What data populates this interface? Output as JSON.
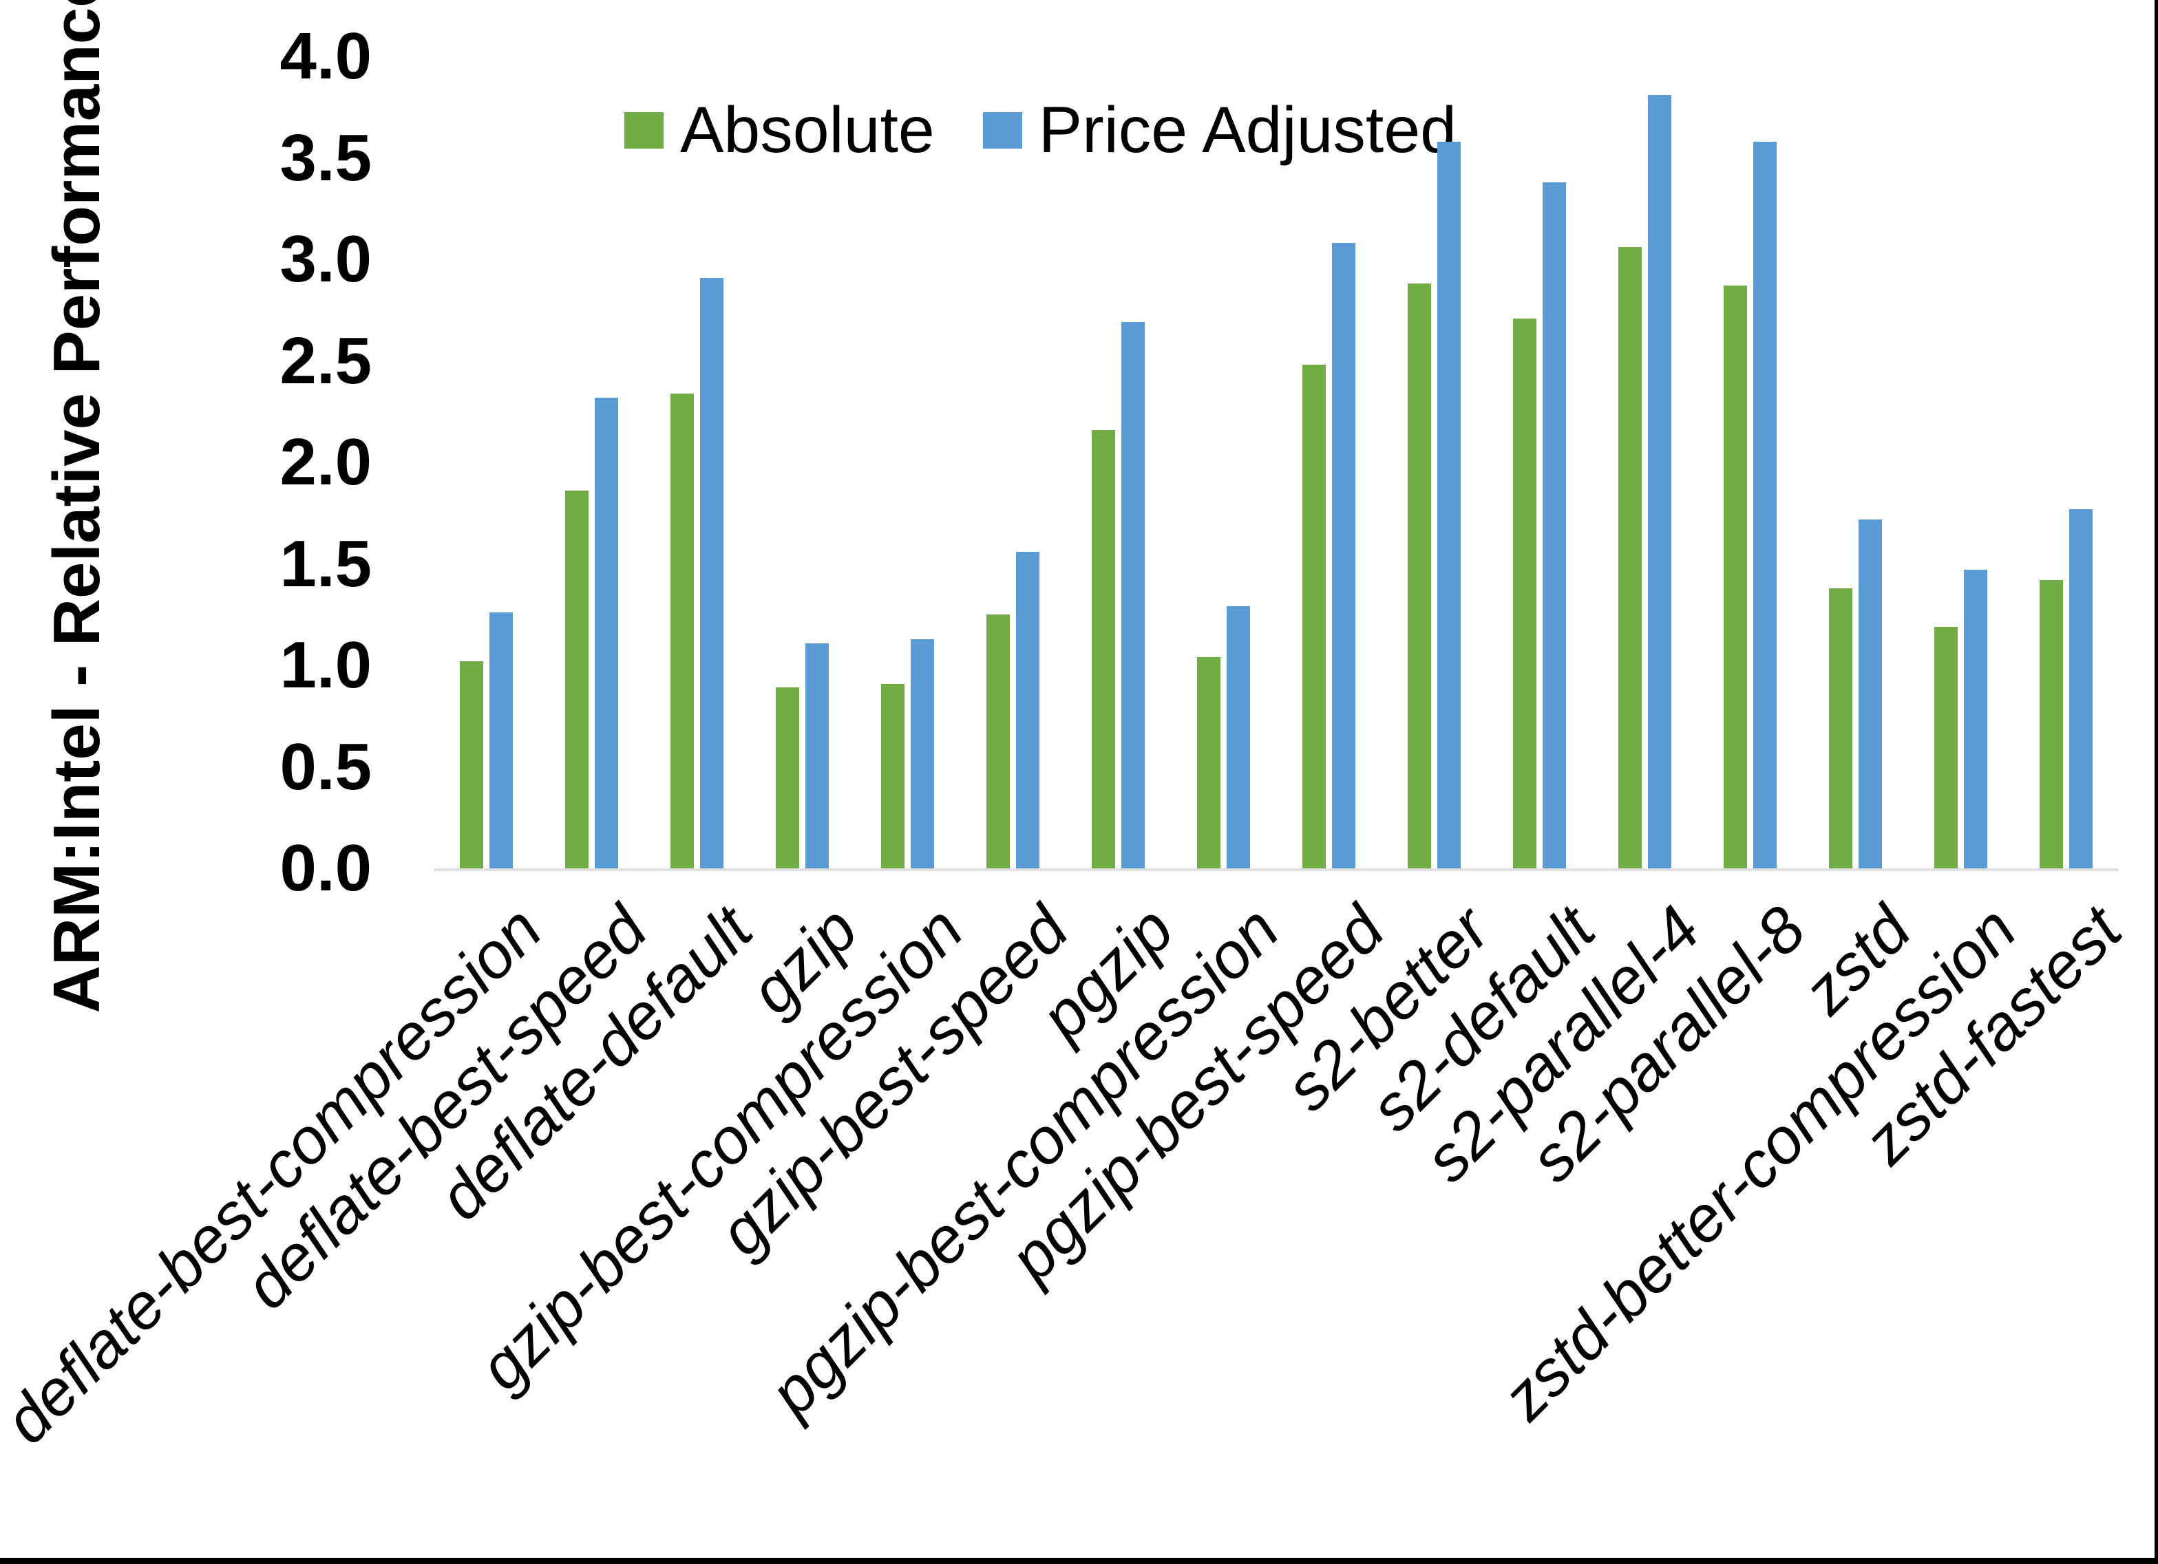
{
  "y_axis": {
    "title": "ARM:Intel - Relative Performance",
    "tick_labels": [
      "4.0",
      "3.5",
      "3.0",
      "2.5",
      "2.0",
      "1.5",
      "1.0",
      "0.5",
      "0.0"
    ],
    "min": 0.0,
    "max": 4.0,
    "step": 0.5
  },
  "legend": [
    {
      "label": "Absolute",
      "color_key": "absolute"
    },
    {
      "label": "Price Adjusted",
      "color_key": "price_adjusted"
    }
  ],
  "colors": {
    "absolute": "#70AD47",
    "price_adjusted": "#5B9BD5",
    "axis_line": "#dfdfdf",
    "text": "#000000",
    "border": "#000000"
  },
  "chart_data": {
    "type": "bar",
    "title": "",
    "xlabel": "",
    "ylabel": "ARM:Intel - Relative Performance",
    "ylim": [
      0.0,
      4.0
    ],
    "grid": false,
    "legend_position": "top",
    "categories": [
      "deflate-best-compression",
      "deflate-best-speed",
      "deflate-default",
      "gzip",
      "gzip-best-compression",
      "gzip-best-speed",
      "pgzip",
      "pgzip-best-compression",
      "pgzip-best-speed",
      "s2-better",
      "s2-default",
      "s2-parallel-4",
      "s2-parallel-8",
      "zstd",
      "zstd-better-compression",
      "zstd-fastest"
    ],
    "series": [
      {
        "name": "Absolute",
        "color_key": "absolute",
        "values": [
          1.02,
          1.86,
          2.34,
          0.89,
          0.91,
          1.25,
          2.16,
          1.04,
          2.48,
          2.88,
          2.71,
          3.06,
          2.87,
          1.38,
          1.19,
          1.42
        ]
      },
      {
        "name": "Price Adjusted",
        "color_key": "price_adjusted",
        "values": [
          1.26,
          2.32,
          2.91,
          1.11,
          1.13,
          1.56,
          2.69,
          1.29,
          3.08,
          3.58,
          3.38,
          3.81,
          3.58,
          1.72,
          1.47,
          1.77
        ]
      }
    ]
  }
}
